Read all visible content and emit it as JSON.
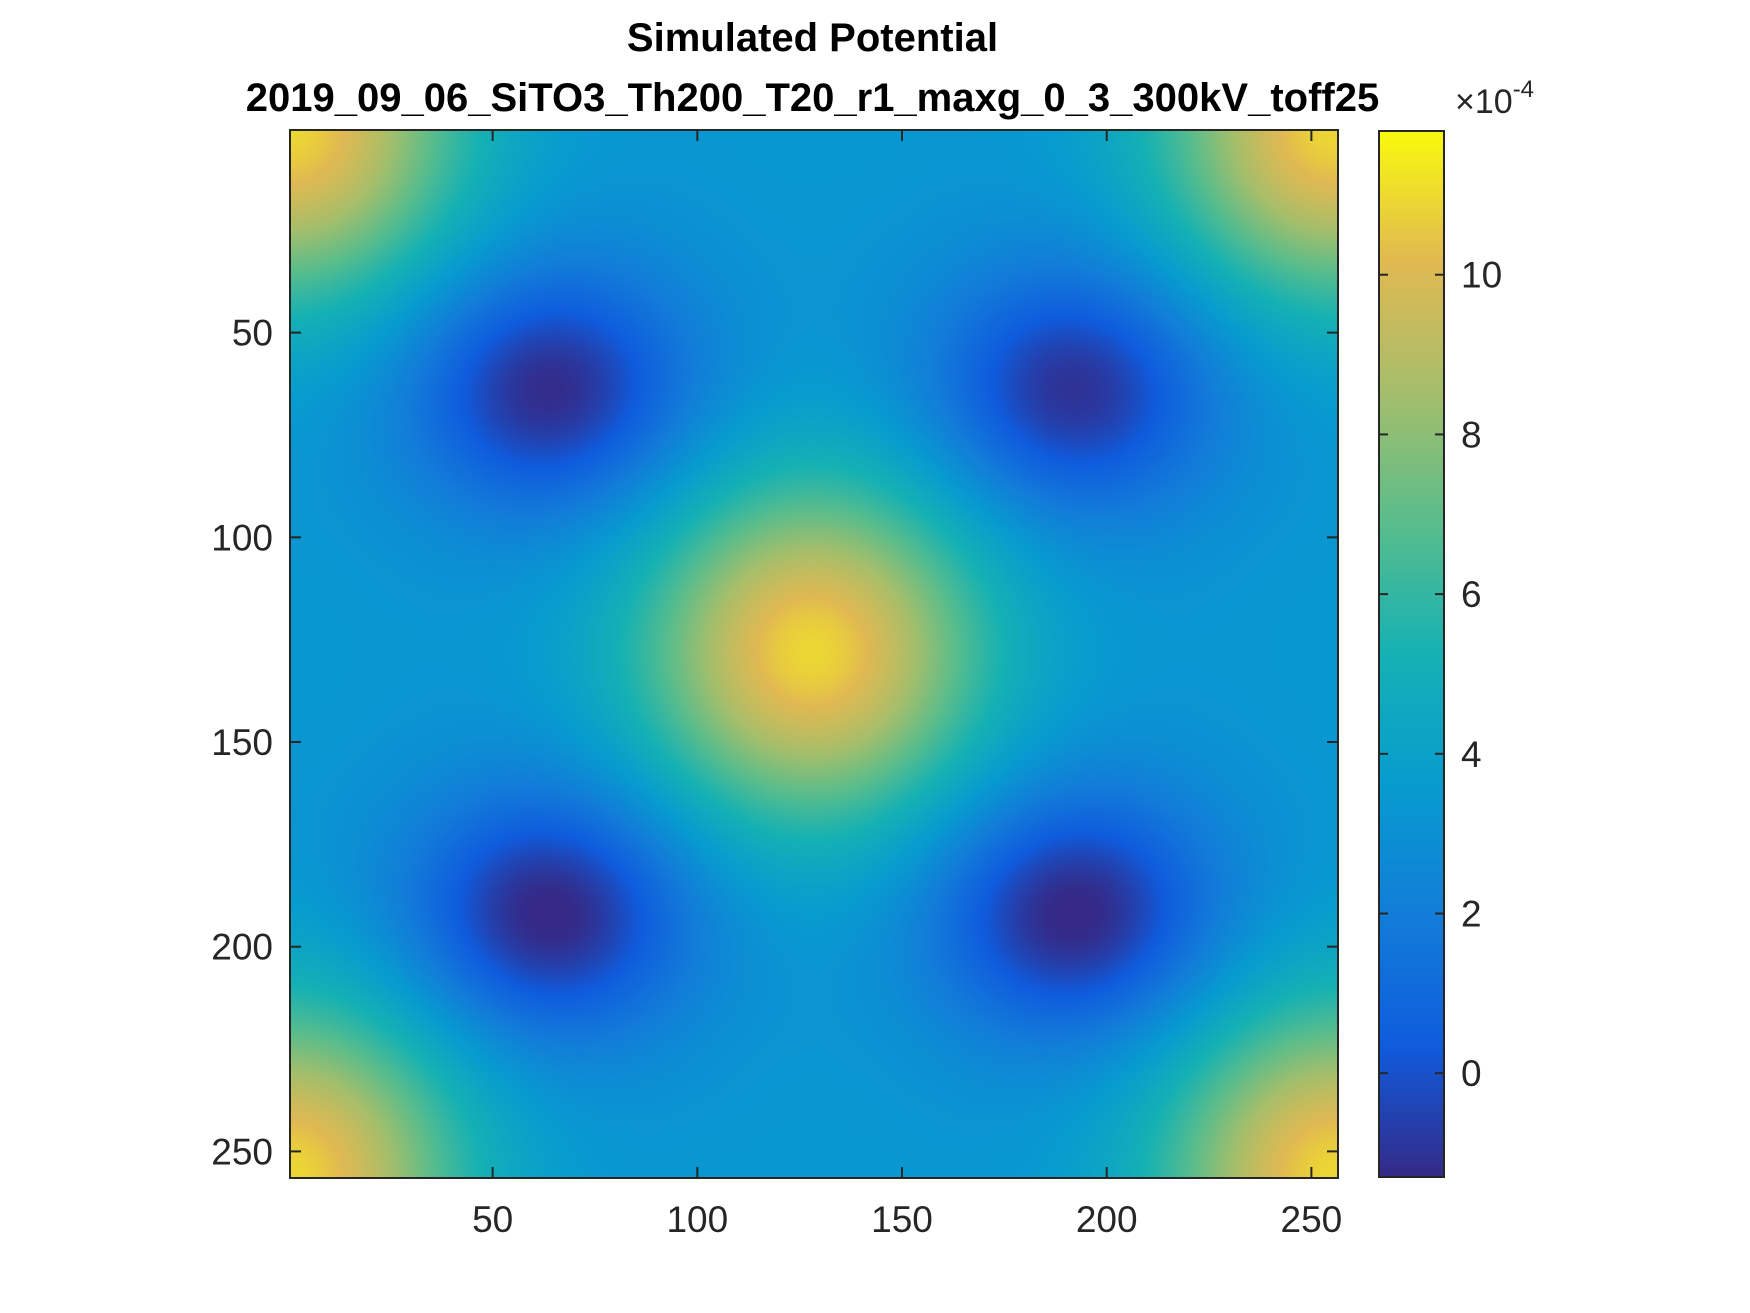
{
  "chart_data": {
    "type": "heatmap",
    "title": "Simulated Potential",
    "subtitle": "2019_09_06_SiTO3_Th200_T20_r1_maxg_0_3_300kV_toff25",
    "xlabel": "",
    "ylabel": "",
    "xlim": [
      0.5,
      256.5
    ],
    "ylim": [
      0.5,
      256.5
    ],
    "y_direction": "reverse",
    "xticks": [
      50,
      100,
      150,
      200,
      250
    ],
    "yticks": [
      50,
      100,
      150,
      200,
      250
    ],
    "grid": false,
    "colormap": "parula",
    "colorbar": {
      "multiplier_base": "×10",
      "multiplier_exponent": "-4",
      "limits": [
        -1.3,
        11.8
      ],
      "ticks": [
        0,
        2,
        4,
        6,
        8,
        10
      ]
    },
    "field": {
      "scale_exponent": -4,
      "baseline": 3.5,
      "period_px": 256,
      "maxima": [
        {
          "x": 128,
          "y": 128,
          "value": 11.8
        },
        {
          "x": 0,
          "y": 0,
          "value": 11.8
        },
        {
          "x": 256,
          "y": 0,
          "value": 11.8
        },
        {
          "x": 0,
          "y": 256,
          "value": 11.8
        },
        {
          "x": 256,
          "y": 256,
          "value": 11.8
        }
      ],
      "minima": [
        {
          "x": 64,
          "y": 64,
          "value": -1.0
        },
        {
          "x": 192,
          "y": 64,
          "value": -0.8
        },
        {
          "x": 64,
          "y": 192,
          "value": -1.2
        },
        {
          "x": 192,
          "y": 192,
          "value": -1.2
        }
      ]
    }
  }
}
